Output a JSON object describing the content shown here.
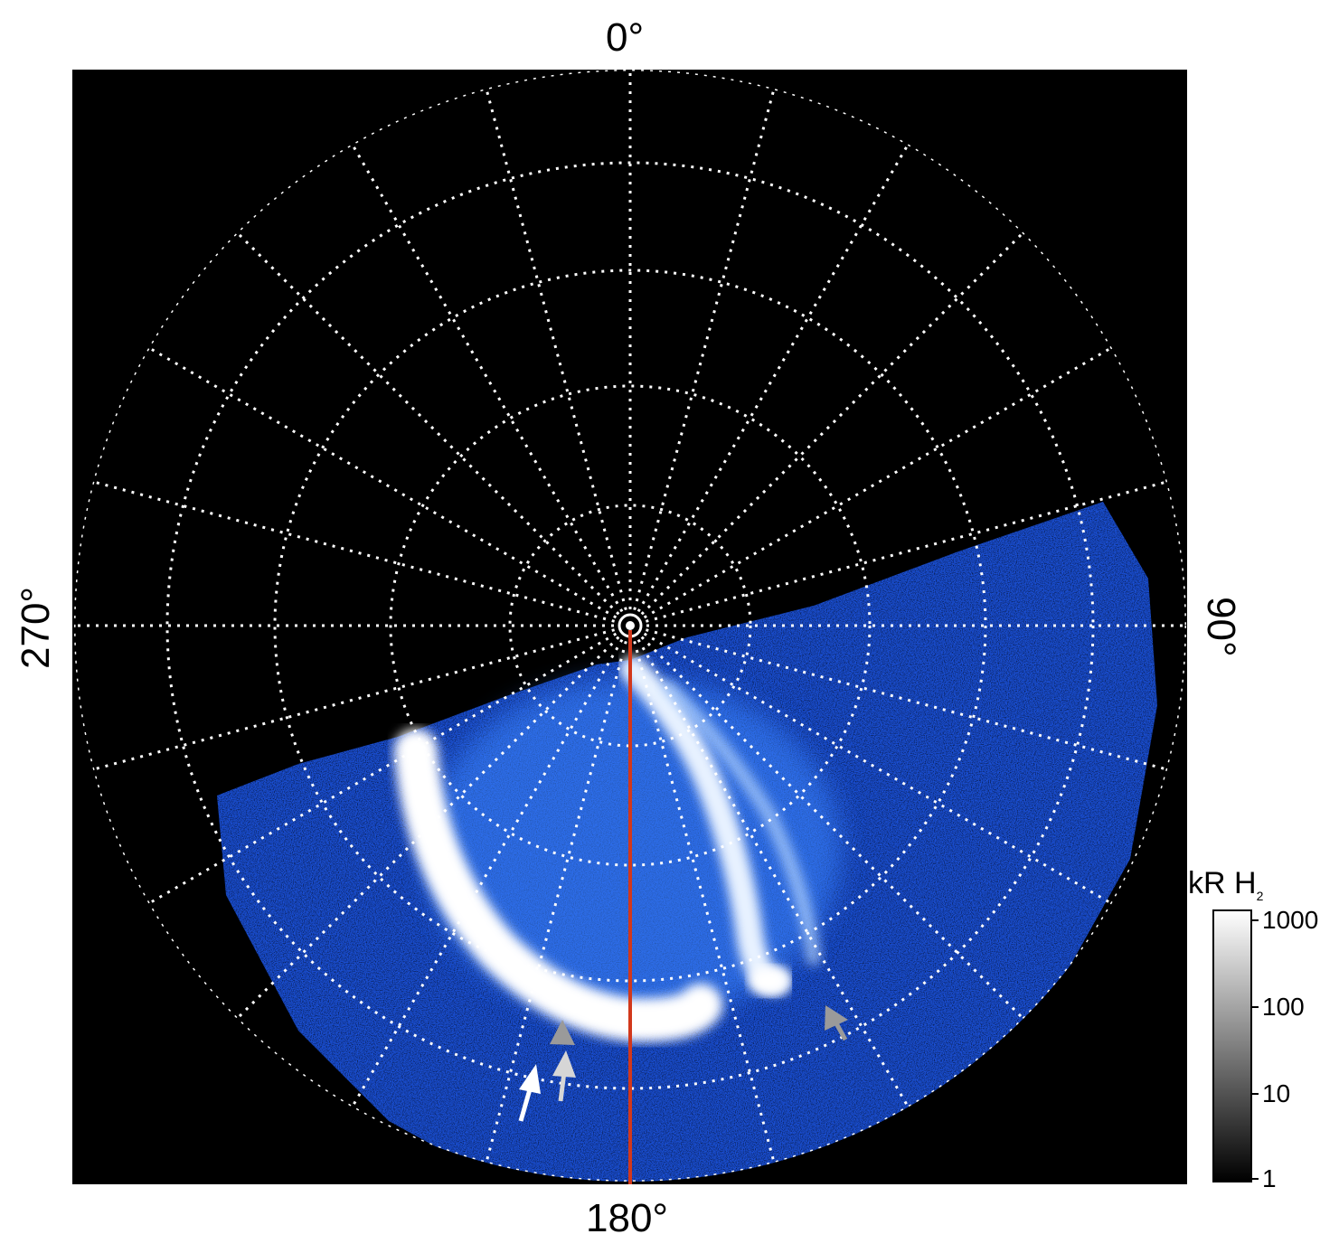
{
  "labels": {
    "top": "0°",
    "bottom": "180°",
    "left": "270°",
    "right": "90°"
  },
  "colorbar": {
    "title_main": "kR H",
    "title_sub": "2",
    "ticks": [
      "1000",
      "100",
      "10",
      "1"
    ]
  },
  "colors": {
    "background": "#000000",
    "aurora_blue": "#1f63e6",
    "aurora_white": "#ffffff",
    "meridian": "#d2381b",
    "grid": "#ffffff",
    "arrow_white": "#ffffff",
    "arrow_gray": "#9a9a9a"
  }
}
